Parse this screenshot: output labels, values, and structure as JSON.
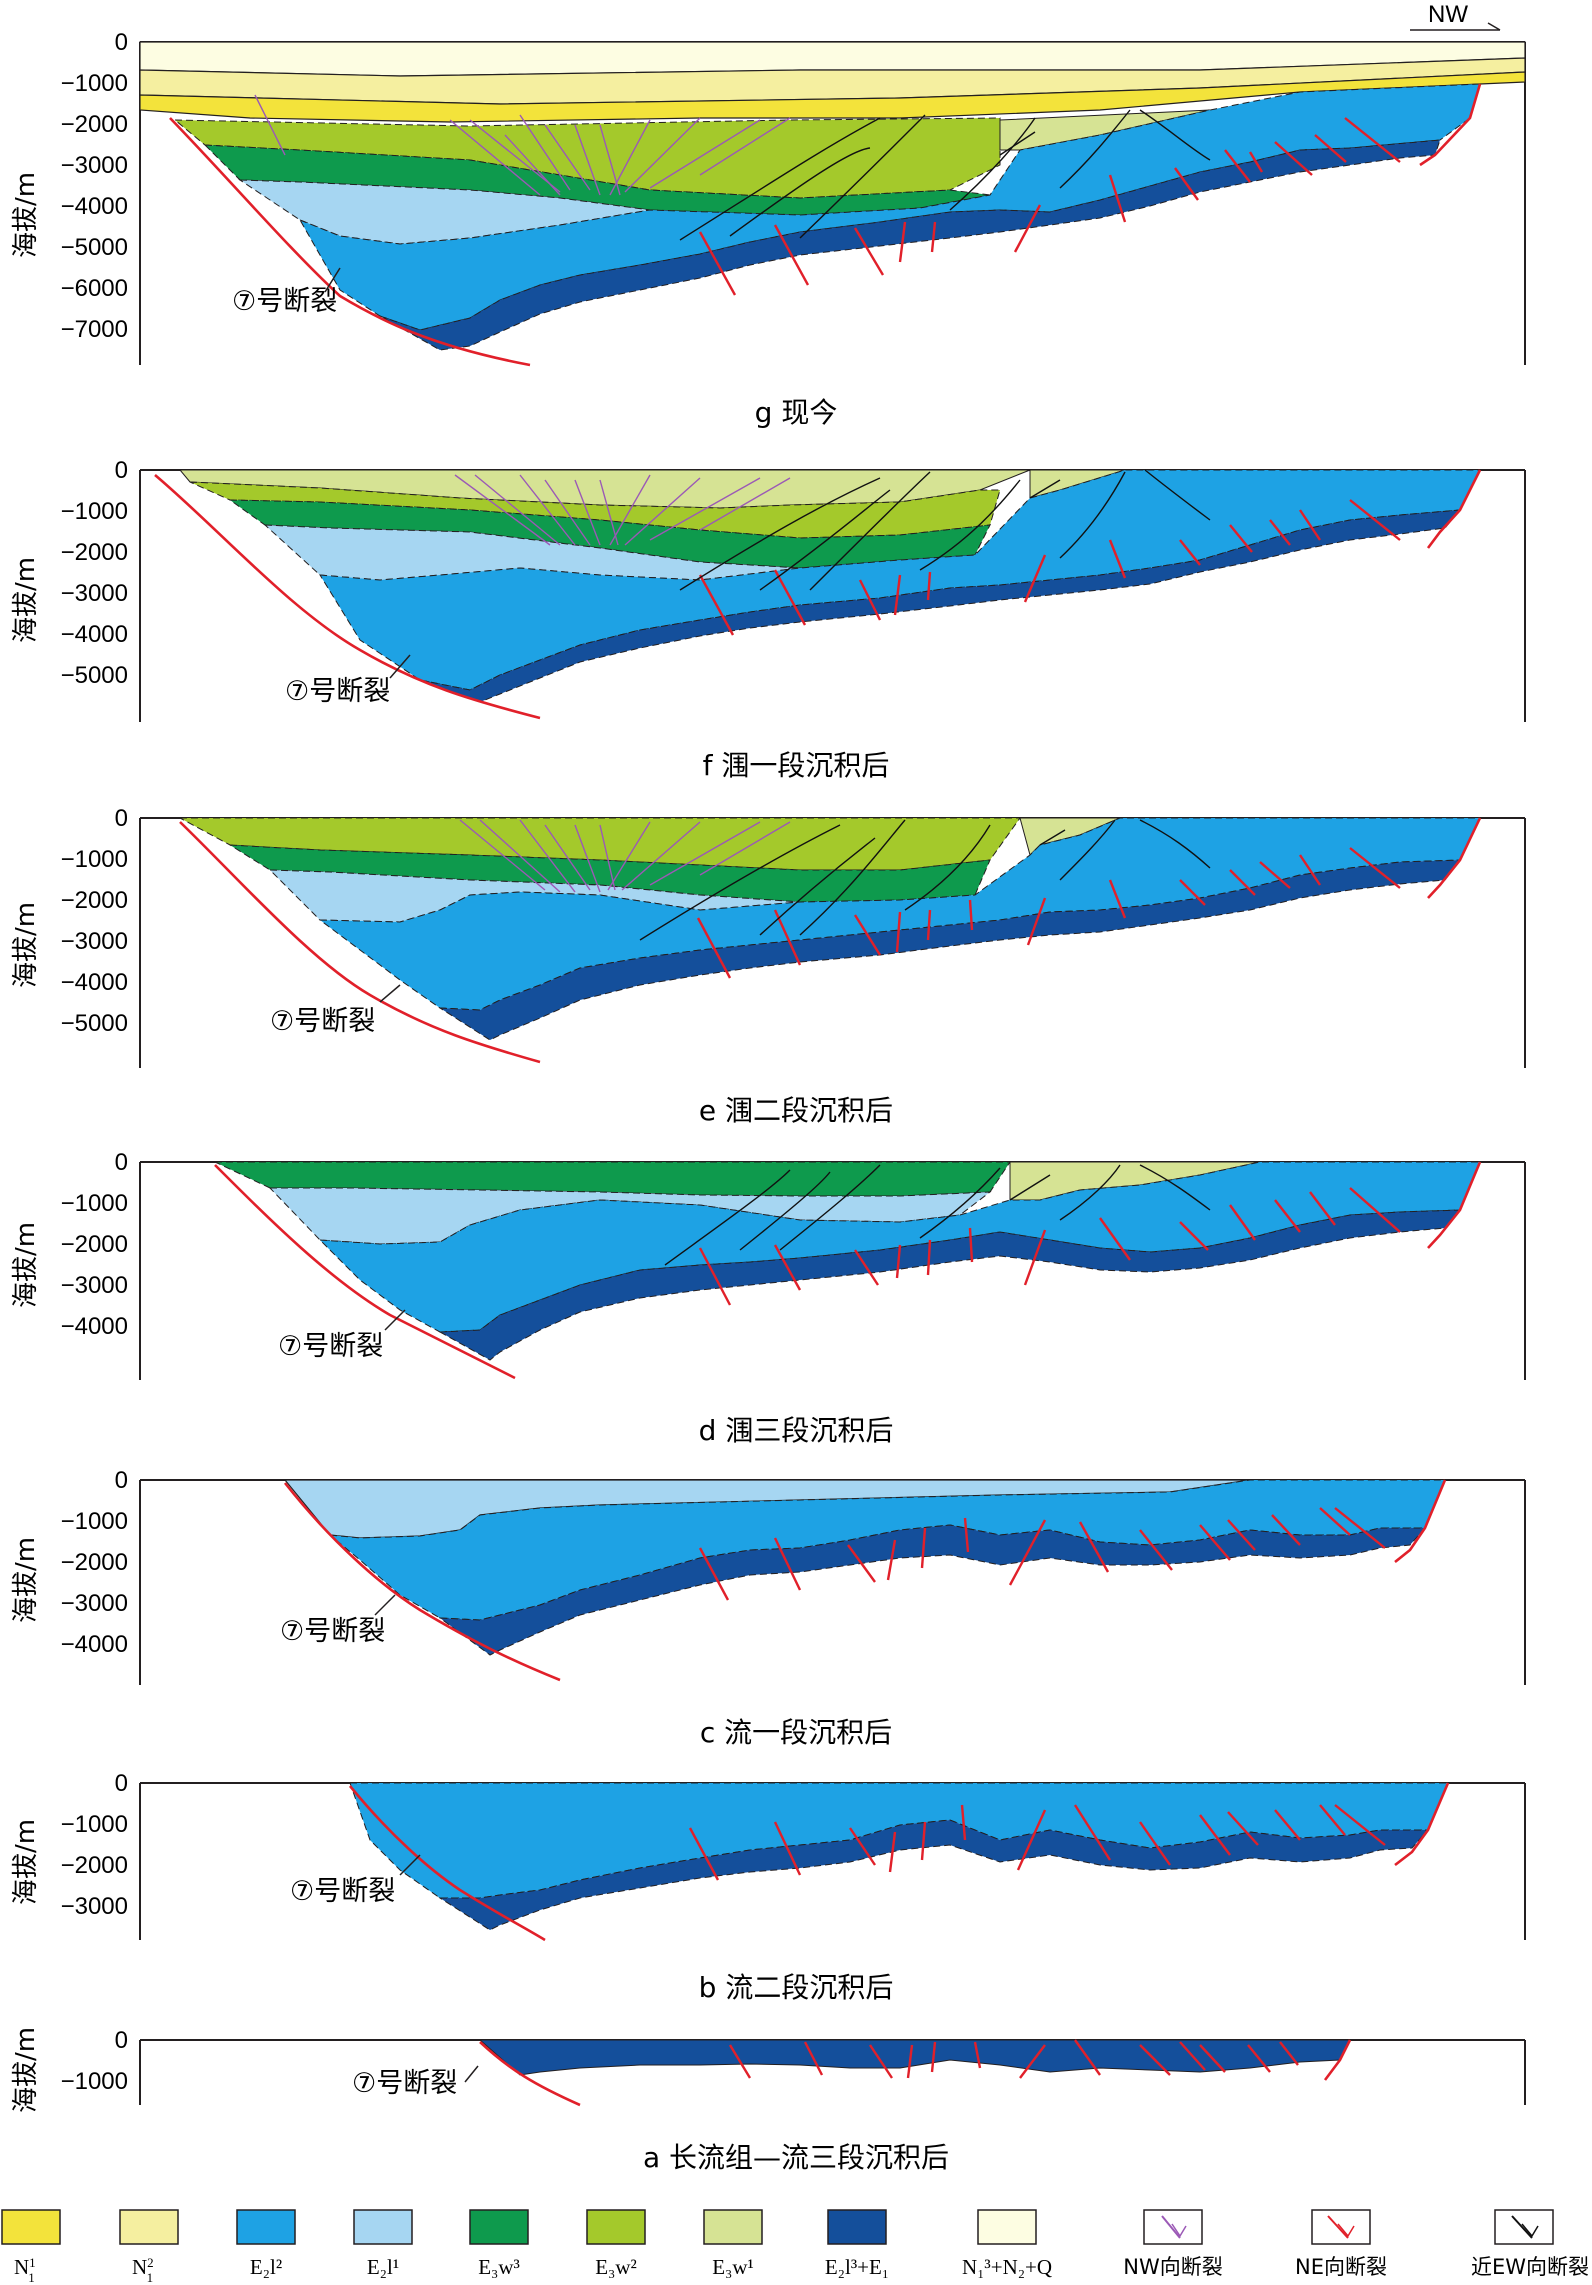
{
  "orientation": "NW",
  "fault_label": "⑦号断裂",
  "y_axis_label": "海拔/m",
  "colors": {
    "N1_1": "#f3e33b",
    "N1_2": "#f5efa0",
    "E2l2": "#1ea2e4",
    "E2l1": "#a6d6f2",
    "E3w3": "#0e9a4d",
    "E3w2": "#a4c92b",
    "E3w1": "#d6e394",
    "E2l3_E1": "#144f9b",
    "N13_N2_Q": "#fdfde2",
    "fault_nw": "#9b59b6",
    "fault_ne": "#e1202a",
    "fault_ew": "#111111"
  },
  "panels": [
    {
      "id": "g",
      "caption": "g  现今",
      "ticks": [
        "0",
        "−1000",
        "−2000",
        "−3000",
        "−4000",
        "−5000",
        "−6000",
        "−7000"
      ]
    },
    {
      "id": "f",
      "caption": "f  涠一段沉积后",
      "ticks": [
        "0",
        "−1000",
        "−2000",
        "−3000",
        "−4000",
        "−5000"
      ]
    },
    {
      "id": "e",
      "caption": "e  涠二段沉积后",
      "ticks": [
        "0",
        "−1000",
        "−2000",
        "−3000",
        "−4000",
        "−5000"
      ]
    },
    {
      "id": "d",
      "caption": "d  涠三段沉积后",
      "ticks": [
        "0",
        "−1000",
        "−2000",
        "−3000",
        "−4000"
      ]
    },
    {
      "id": "c",
      "caption": "c  流一段沉积后",
      "ticks": [
        "0",
        "−1000",
        "−2000",
        "−3000",
        "−4000"
      ]
    },
    {
      "id": "b",
      "caption": "b  流二段沉积后",
      "ticks": [
        "0",
        "−1000",
        "−2000",
        "−3000"
      ]
    },
    {
      "id": "a",
      "caption": "a  长流组—流三段沉积后",
      "ticks": [
        "0",
        "−1000"
      ]
    }
  ],
  "legend": [
    {
      "key": "N1_1",
      "label": "N",
      "sub": "1",
      "sup": "1"
    },
    {
      "key": "N1_2",
      "label": "N",
      "sub": "1",
      "sup": "2"
    },
    {
      "key": "E2l2",
      "label": "E₂l²"
    },
    {
      "key": "E2l1",
      "label": "E₂l¹"
    },
    {
      "key": "E3w3",
      "label": "E₃w³"
    },
    {
      "key": "E3w2",
      "label": "E₃w²"
    },
    {
      "key": "E3w1",
      "label": "E₃w¹"
    },
    {
      "key": "E2l3_E1",
      "label": "E₂l³+E₁"
    },
    {
      "key": "N13_N2_Q",
      "label": "N₁³+N₂+Q"
    },
    {
      "key": "fault_nw",
      "label": "NW向断裂"
    },
    {
      "key": "fault_ne",
      "label": "NE向断裂"
    },
    {
      "key": "fault_ew",
      "label": "近EW向断裂"
    }
  ]
}
